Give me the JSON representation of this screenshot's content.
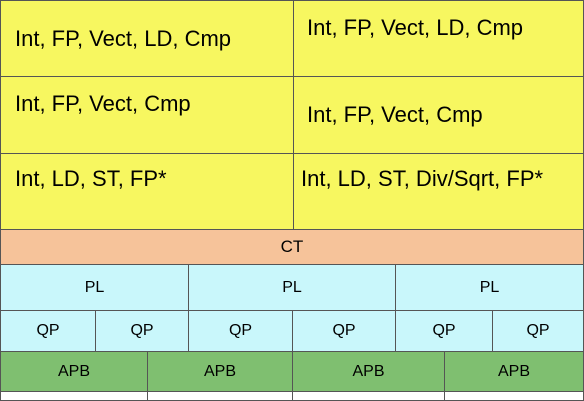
{
  "units": {
    "rows": [
      [
        "Int, FP, Vect, LD, Cmp",
        "Int, FP, Vect, LD, Cmp"
      ],
      [
        "Int, FP, Vect, Cmp",
        "Int, FP, Vect, Cmp"
      ],
      [
        "Int, LD, ST, FP*",
        "Int, LD, ST, Div/Sqrt, FP*"
      ]
    ]
  },
  "ct": "CT",
  "pl": [
    "PL",
    "PL",
    "PL"
  ],
  "qp": [
    "QP",
    "QP",
    "QP",
    "QP",
    "QP",
    "QP"
  ],
  "apb": [
    "APB",
    "APB",
    "APB",
    "APB"
  ],
  "colors": {
    "units": "#f7f760",
    "ct": "#f6c39a",
    "pl_qp": "#c9f7fb",
    "apb": "#7fbf70"
  }
}
